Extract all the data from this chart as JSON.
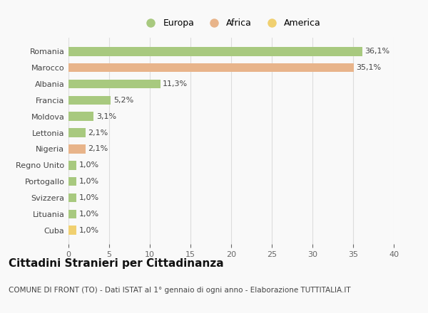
{
  "categories": [
    "Romania",
    "Marocco",
    "Albania",
    "Francia",
    "Moldova",
    "Lettonia",
    "Nigeria",
    "Regno Unito",
    "Portogallo",
    "Svizzera",
    "Lituania",
    "Cuba"
  ],
  "values": [
    36.1,
    35.1,
    11.3,
    5.2,
    3.1,
    2.1,
    2.1,
    1.0,
    1.0,
    1.0,
    1.0,
    1.0
  ],
  "labels": [
    "36,1%",
    "35,1%",
    "11,3%",
    "5,2%",
    "3,1%",
    "2,1%",
    "2,1%",
    "1,0%",
    "1,0%",
    "1,0%",
    "1,0%",
    "1,0%"
  ],
  "colors": [
    "#a8c97f",
    "#e8b48a",
    "#a8c97f",
    "#a8c97f",
    "#a8c97f",
    "#a8c97f",
    "#e8b48a",
    "#a8c97f",
    "#a8c97f",
    "#a8c97f",
    "#a8c97f",
    "#f0d070"
  ],
  "legend_labels": [
    "Europa",
    "Africa",
    "America"
  ],
  "legend_colors": [
    "#a8c97f",
    "#e8b48a",
    "#f0d070"
  ],
  "title": "Cittadini Stranieri per Cittadinanza",
  "subtitle": "COMUNE DI FRONT (TO) - Dati ISTAT al 1° gennaio di ogni anno - Elaborazione TUTTITALIA.IT",
  "xlim": [
    0,
    40
  ],
  "xticks": [
    0,
    5,
    10,
    15,
    20,
    25,
    30,
    35,
    40
  ],
  "background_color": "#f9f9f9",
  "grid_color": "#dddddd",
  "bar_height": 0.55,
  "title_fontsize": 11,
  "subtitle_fontsize": 7.5,
  "tick_fontsize": 8,
  "label_fontsize": 8,
  "legend_fontsize": 9
}
